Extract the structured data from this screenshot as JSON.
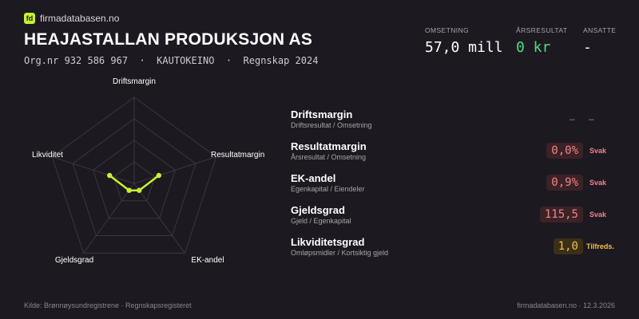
{
  "brand": {
    "logo_text": "fd",
    "name": "firmadatabasen.no"
  },
  "company": {
    "name": "HEAJASTALLAN PRODUKSJON AS",
    "meta": "Org.nr 932 586 967  ·  KAUTOKEINO  ·  Regnskap 2024"
  },
  "kpis": [
    {
      "label": "OMSETNING",
      "value": "57,0 mill"
    },
    {
      "label": "ÅRSRESULTAT",
      "value": "0 kr",
      "color": "#4ade80"
    },
    {
      "label": "ANSATTE",
      "value": "-"
    }
  ],
  "radar": {
    "axes": [
      "Driftsmargin",
      "Resultatmargin",
      "EK-andel",
      "Gjeldsgrad",
      "Likviditet"
    ],
    "scores": [
      0,
      0.3,
      0.1,
      0.1,
      0.3
    ],
    "colors": {
      "grid": "#3a3540",
      "series": "#c6f135"
    }
  },
  "metrics": [
    {
      "title": "Driftsmargin",
      "subtitle": "Driftsresultat / Omsetning",
      "value": "–",
      "status": "–",
      "tone": "none"
    },
    {
      "title": "Resultatmargin",
      "subtitle": "Årsresultat / Omsetning",
      "value": "0,0%",
      "status": "Svak",
      "tone": "red"
    },
    {
      "title": "EK-andel",
      "subtitle": "Egenkapital / Eiendeler",
      "value": "0,9%",
      "status": "Svak",
      "tone": "red"
    },
    {
      "title": "Gjeldsgrad",
      "subtitle": "Gjeld / Egenkapital",
      "value": "115,5",
      "status": "Svak",
      "tone": "red"
    },
    {
      "title": "Likviditetsgrad",
      "subtitle": "Omløpsmidler / Kortsiktig gjeld",
      "value": "1,0",
      "status": "Tilfreds.",
      "tone": "yellow"
    }
  ],
  "footer": {
    "source": "Kilde: Brønnøysundregistrene · Regnskapsregisteret",
    "site_date": "firmadatabasen.no · 12.3.2026"
  }
}
